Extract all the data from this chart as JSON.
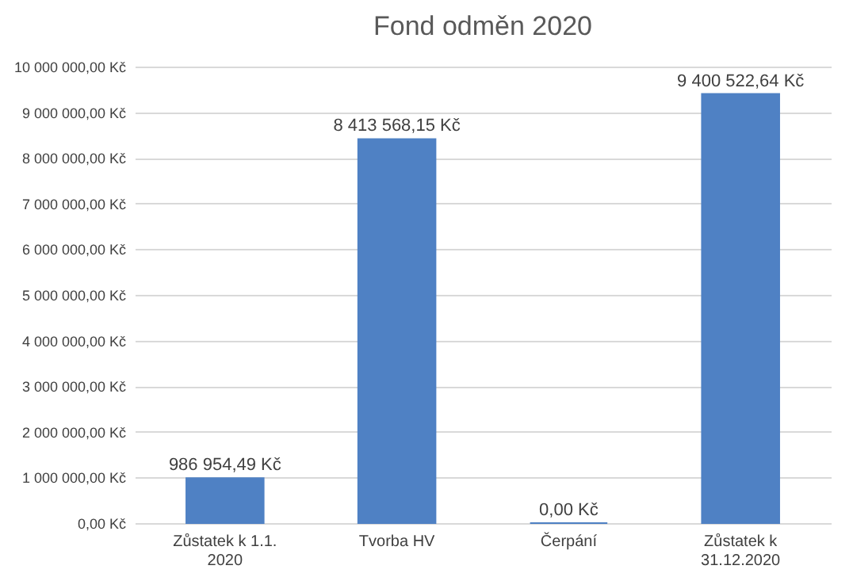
{
  "chart_data": {
    "type": "bar",
    "title": "Fond odměn 2020",
    "categories": [
      "Zůstatek k 1.1. 2020",
      "Tvorba  HV",
      "Čerpání",
      "Zůstatek k 31.12.2020"
    ],
    "values": [
      986954.49,
      8413568.15,
      0,
      9400522.64
    ],
    "value_labels": [
      "986 954,49 Kč",
      "8 413 568,15 Kč",
      "0,00 Kč",
      "9 400 522,64 Kč"
    ],
    "color": "#4f81c4",
    "ylim": [
      0,
      10000000
    ],
    "yticks": [
      {
        "value": 0,
        "label": "0,00 Kč"
      },
      {
        "value": 1000000,
        "label": "1 000 000,00 Kč"
      },
      {
        "value": 2000000,
        "label": "2 000 000,00 Kč"
      },
      {
        "value": 3000000,
        "label": "3 000 000,00 Kč"
      },
      {
        "value": 4000000,
        "label": "4 000 000,00 Kč"
      },
      {
        "value": 5000000,
        "label": "5 000 000,00 Kč"
      },
      {
        "value": 6000000,
        "label": "6 000 000,00 Kč"
      },
      {
        "value": 7000000,
        "label": "7 000 000,00 Kč"
      },
      {
        "value": 8000000,
        "label": "8 000 000,00 Kč"
      },
      {
        "value": 9000000,
        "label": "9 000 000,00 Kč"
      },
      {
        "value": 10000000,
        "label": "10 000 000,00 Kč"
      }
    ],
    "grid": true
  }
}
